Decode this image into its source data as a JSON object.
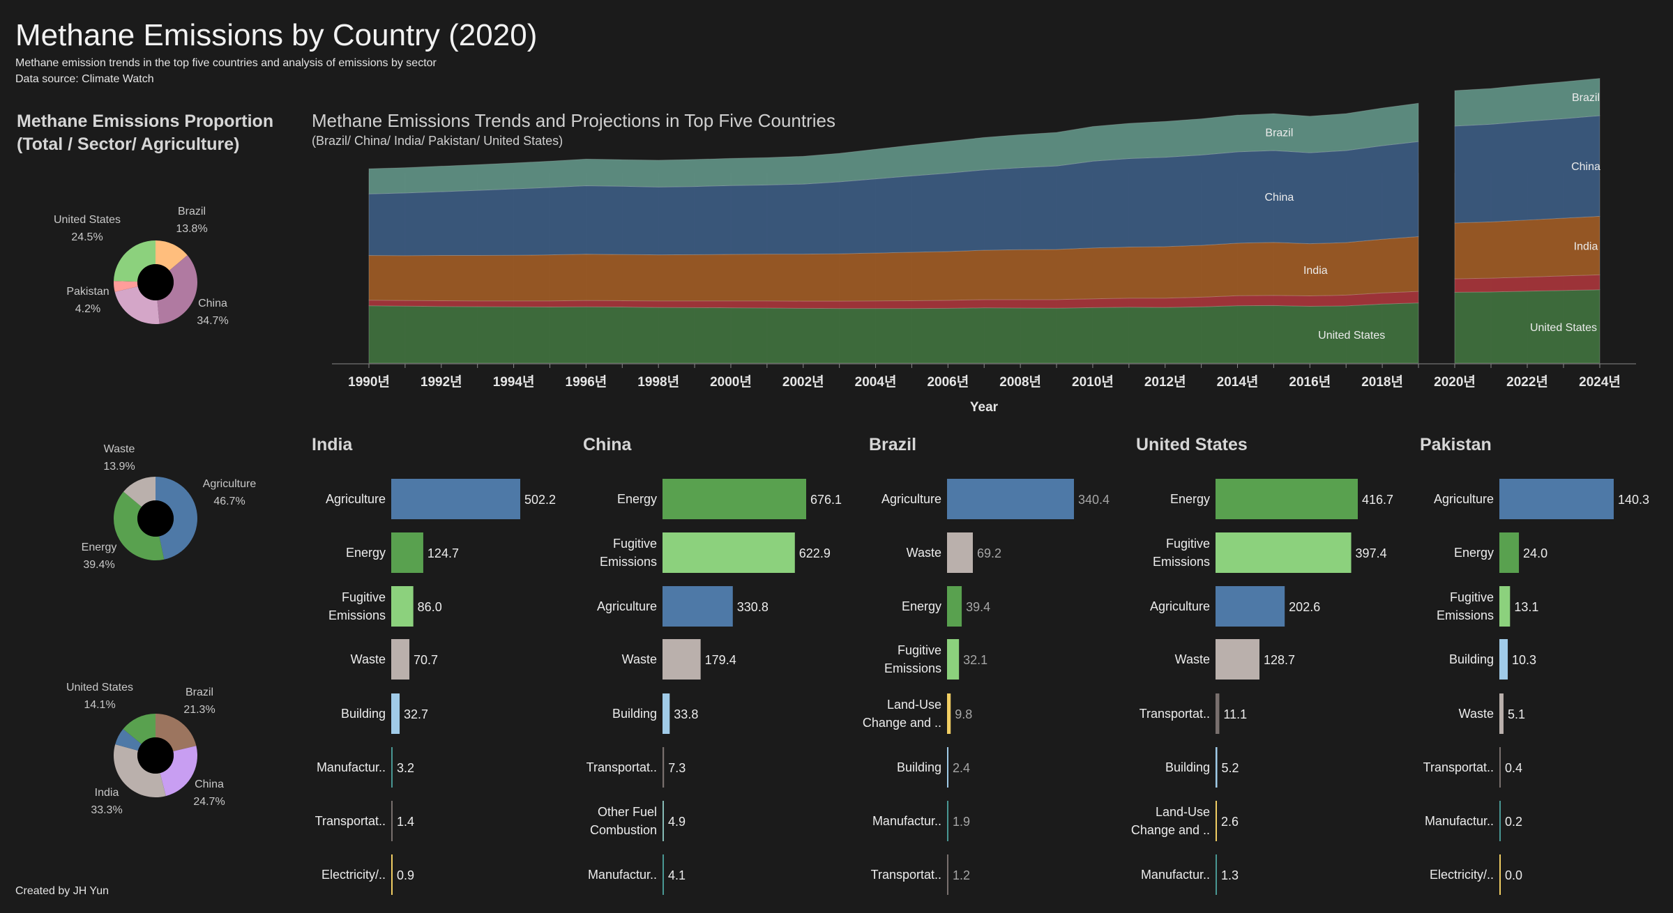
{
  "header": {
    "title": "Methane Emissions by Country (2020)",
    "subtitle": "Methane emission trends in the top five countries and analysis of emissions by sector",
    "source": "Data source: Climate Watch"
  },
  "footer": {
    "credit": "Created by JH Yun"
  },
  "proportion_panel": {
    "title_line1": "Methane Emissions Proportion",
    "title_line2": "(Total / Sector/ Agriculture)"
  },
  "area_panel": {
    "title": "Methane Emissions Trends and Projections in Top Five Countries",
    "subtitle": "(Brazil/ China/ India/ Pakistan/ United States)"
  },
  "colors": {
    "background": "#1b1b1b",
    "agriculture": "#4e79a7",
    "energy": "#59a14f",
    "fugitive": "#8cd17d",
    "waste": "#bab0ac",
    "building": "#a0cbe8",
    "manufacturing": "#499894",
    "transportation": "#79706e",
    "electricity": "#f1ce63",
    "landuse": "#f1ce63",
    "otherfuel": "#86bcb6",
    "area_brazil": "#5f8f83",
    "area_china": "#3b5a7e",
    "area_india": "#9b5a25",
    "area_pakistan": "#a3353a",
    "area_us": "#3f6f3d"
  },
  "chart_data": [
    {
      "type": "pie",
      "id": "total",
      "slices": [
        {
          "label": "Brazil",
          "value": 13.8,
          "display": "13.8%",
          "color": "#ffbe7d"
        },
        {
          "label": "China",
          "value": 34.7,
          "display": "34.7%",
          "color": "#b07aa1"
        },
        {
          "label": "",
          "value": 22.8,
          "display": "",
          "color": "#d4a6c8"
        },
        {
          "label": "Pakistan",
          "value": 4.2,
          "display": "4.2%",
          "color": "#ff9d9a"
        },
        {
          "label": "United States",
          "value": 24.5,
          "display": "24.5%",
          "color": "#8cd17d"
        }
      ]
    },
    {
      "type": "pie",
      "id": "sector",
      "slices": [
        {
          "label": "Agriculture",
          "value": 46.7,
          "display": "46.7%",
          "color": "#4e79a7"
        },
        {
          "label": "Energy",
          "value": 39.4,
          "display": "39.4%",
          "color": "#59a14f"
        },
        {
          "label": "Waste",
          "value": 13.9,
          "display": "13.9%",
          "color": "#bab0ac"
        }
      ]
    },
    {
      "type": "pie",
      "id": "agriculture",
      "slices": [
        {
          "label": "Brazil",
          "value": 21.3,
          "display": "21.3%",
          "color": "#9c755f"
        },
        {
          "label": "China",
          "value": 24.7,
          "display": "24.7%",
          "color": "#c89ef2"
        },
        {
          "label": "India",
          "value": 33.3,
          "display": "33.3%",
          "color": "#bab0ac"
        },
        {
          "label": "",
          "value": 6.6,
          "display": "",
          "color": "#4e79a7"
        },
        {
          "label": "United States",
          "value": 14.1,
          "display": "14.1%",
          "color": "#59a14f"
        }
      ]
    },
    {
      "type": "area",
      "id": "trends",
      "xlabel": "Year",
      "x_ticks": [
        "1990년",
        "1992년",
        "1994년",
        "1996년",
        "1998년",
        "2000년",
        "2002년",
        "2004년",
        "2006년",
        "2008년",
        "2010년",
        "2012년",
        "2014년",
        "2016년",
        "2018년",
        "2020년",
        "2022년",
        "2024년"
      ],
      "ylim": [
        0,
        3000
      ],
      "segments": [
        {
          "x": [
            1990,
            1991,
            1992,
            1993,
            1994,
            1995,
            1996,
            1997,
            1998,
            1999,
            2000,
            2001,
            2002,
            2003,
            2004,
            2005,
            2006,
            2007,
            2008,
            2009,
            2010,
            2011,
            2012,
            2013,
            2014,
            2015,
            2016,
            2017,
            2018,
            2019
          ]
        },
        {
          "x": [
            2020,
            2021,
            2022,
            2023,
            2024
          ]
        }
      ],
      "series": [
        {
          "name": "United States",
          "label": "United States",
          "color": "#3f6f3d",
          "values": [
            [
              616,
              612,
              608,
              606,
              604,
              602,
              604,
              602,
              598,
              596,
              594,
              592,
              588,
              586,
              586,
              586,
              588,
              594,
              592,
              590,
              596,
              600,
              598,
              604,
              616,
              618,
              610,
              614,
              634,
              646
            ],
            [
              760,
              764,
              772,
              780,
              788
            ]
          ]
        },
        {
          "name": "Pakistan",
          "label": "",
          "color": "#a3353a",
          "values": [
            [
              60,
              60,
              62,
              62,
              64,
              66,
              68,
              68,
              70,
              72,
              74,
              76,
              78,
              80,
              82,
              84,
              86,
              88,
              90,
              92,
              94,
              98,
              100,
              104,
              108,
              110,
              112,
              116,
              120,
              124
            ],
            [
              145,
              148,
              152,
              156,
              160
            ]
          ]
        },
        {
          "name": "India",
          "label": "India",
          "color": "#9b5a25",
          "values": [
            [
              480,
              482,
              486,
              488,
              490,
              494,
              498,
              496,
              494,
              496,
              500,
              502,
              504,
              508,
              514,
              520,
              524,
              530,
              536,
              538,
              546,
              548,
              552,
              556,
              564,
              568,
              560,
              564,
              576,
              588
            ],
            [
              600,
              604,
              612,
              620,
              628
            ]
          ]
        },
        {
          "name": "China",
          "label": "China",
          "color": "#3b5a7e",
          "values": [
            [
              660,
              672,
              684,
              698,
              712,
              724,
              734,
              732,
              728,
              732,
              738,
              742,
              752,
              772,
              796,
              820,
              842,
              862,
              880,
              896,
              932,
              950,
              960,
              970,
              980,
              986,
              976,
              988,
              1004,
              1020
            ],
            [
              1040,
              1048,
              1060,
              1068,
              1080
            ]
          ]
        },
        {
          "name": "Brazil",
          "label": "Brazil",
          "color": "#5f8f83",
          "values": [
            [
              270,
              272,
              274,
              276,
              278,
              282,
              286,
              286,
              288,
              290,
              292,
              294,
              298,
              306,
              318,
              330,
              340,
              348,
              354,
              360,
              372,
              378,
              384,
              388,
              394,
              396,
              392,
              396,
              404,
              412
            ],
            [
              380,
              384,
              390,
              396,
              400
            ]
          ]
        }
      ],
      "series_labels": [
        {
          "name": "Brazil",
          "x": [
            2015,
            2024
          ]
        },
        {
          "name": "China",
          "x": [
            2015,
            2024
          ]
        },
        {
          "name": "India",
          "x": [
            2016,
            2024
          ]
        },
        {
          "name": "United States",
          "x": [
            2017,
            2023
          ]
        }
      ]
    },
    {
      "type": "bar",
      "country": "India",
      "max_value": 502.2,
      "bars": [
        {
          "label": "Agriculture",
          "value": 502.2,
          "display": "502.2",
          "color": "#4e79a7"
        },
        {
          "label": "Energy",
          "value": 124.7,
          "display": "124.7",
          "color": "#59a14f"
        },
        {
          "label": "Fugitive Emissions",
          "value": 86.0,
          "display": "86.0",
          "color": "#8cd17d"
        },
        {
          "label": "Waste",
          "value": 70.7,
          "display": "70.7",
          "color": "#bab0ac"
        },
        {
          "label": "Building",
          "value": 32.7,
          "display": "32.7",
          "color": "#a0cbe8"
        },
        {
          "label": "Manufactur..",
          "value": 3.2,
          "display": "3.2",
          "color": "#499894"
        },
        {
          "label": "Transportat..",
          "value": 1.4,
          "display": "1.4",
          "color": "#79706e"
        },
        {
          "label": "Electricity/..",
          "value": 0.9,
          "display": "0.9",
          "color": "#f1ce63"
        }
      ]
    },
    {
      "type": "bar",
      "country": "China",
      "max_value": 676.1,
      "bars": [
        {
          "label": "Energy",
          "value": 676.1,
          "display": "676.1",
          "color": "#59a14f"
        },
        {
          "label": "Fugitive Emissions",
          "value": 622.9,
          "display": "622.9",
          "color": "#8cd17d"
        },
        {
          "label": "Agriculture",
          "value": 330.8,
          "display": "330.8",
          "color": "#4e79a7"
        },
        {
          "label": "Waste",
          "value": 179.4,
          "display": "179.4",
          "color": "#bab0ac"
        },
        {
          "label": "Building",
          "value": 33.8,
          "display": "33.8",
          "color": "#a0cbe8"
        },
        {
          "label": "Transportat..",
          "value": 7.3,
          "display": "7.3",
          "color": "#79706e"
        },
        {
          "label": "Other Fuel Combustion",
          "value": 4.9,
          "display": "4.9",
          "color": "#86bcb6"
        },
        {
          "label": "Manufactur..",
          "value": 4.1,
          "display": "4.1",
          "color": "#499894"
        }
      ]
    },
    {
      "type": "bar",
      "country": "Brazil",
      "max_value": 340.4,
      "bars": [
        {
          "label": "Agriculture",
          "value": 340.4,
          "display": "340.4",
          "color": "#4e79a7"
        },
        {
          "label": "Waste",
          "value": 69.2,
          "display": "69.2",
          "color": "#bab0ac"
        },
        {
          "label": "Energy",
          "value": 39.4,
          "display": "39.4",
          "color": "#59a14f"
        },
        {
          "label": "Fugitive Emissions",
          "value": 32.1,
          "display": "32.1",
          "color": "#8cd17d"
        },
        {
          "label": "Land-Use Change and ..",
          "value": 9.8,
          "display": "9.8",
          "color": "#f1ce63"
        },
        {
          "label": "Building",
          "value": 2.4,
          "display": "2.4",
          "color": "#a0cbe8"
        },
        {
          "label": "Manufactur..",
          "value": 1.9,
          "display": "1.9",
          "color": "#499894"
        },
        {
          "label": "Transportat..",
          "value": 1.2,
          "display": "1.2",
          "color": "#79706e"
        }
      ]
    },
    {
      "type": "bar",
      "country": "United States",
      "max_value": 416.7,
      "bars": [
        {
          "label": "Energy",
          "value": 416.7,
          "display": "416.7",
          "color": "#59a14f"
        },
        {
          "label": "Fugitive Emissions",
          "value": 397.4,
          "display": "397.4",
          "color": "#8cd17d"
        },
        {
          "label": "Agriculture",
          "value": 202.6,
          "display": "202.6",
          "color": "#4e79a7"
        },
        {
          "label": "Waste",
          "value": 128.7,
          "display": "128.7",
          "color": "#bab0ac"
        },
        {
          "label": "Transportat..",
          "value": 11.1,
          "display": "11.1",
          "color": "#79706e"
        },
        {
          "label": "Building",
          "value": 5.2,
          "display": "5.2",
          "color": "#a0cbe8"
        },
        {
          "label": "Land-Use Change and ..",
          "value": 2.6,
          "display": "2.6",
          "color": "#f1ce63"
        },
        {
          "label": "Manufactur..",
          "value": 1.3,
          "display": "1.3",
          "color": "#499894"
        }
      ]
    },
    {
      "type": "bar",
      "country": "Pakistan",
      "max_value": 140.3,
      "bars": [
        {
          "label": "Agriculture",
          "value": 140.3,
          "display": "140.3",
          "color": "#4e79a7"
        },
        {
          "label": "Energy",
          "value": 24.0,
          "display": "24.0",
          "color": "#59a14f"
        },
        {
          "label": "Fugitive Emissions",
          "value": 13.1,
          "display": "13.1",
          "color": "#8cd17d"
        },
        {
          "label": "Building",
          "value": 10.3,
          "display": "10.3",
          "color": "#a0cbe8"
        },
        {
          "label": "Waste",
          "value": 5.1,
          "display": "5.1",
          "color": "#bab0ac"
        },
        {
          "label": "Transportat..",
          "value": 0.4,
          "display": "0.4",
          "color": "#79706e"
        },
        {
          "label": "Manufactur..",
          "value": 0.2,
          "display": "0.2",
          "color": "#499894"
        },
        {
          "label": "Electricity/..",
          "value": 0.0,
          "display": "0.0",
          "color": "#f1ce63"
        }
      ]
    }
  ]
}
